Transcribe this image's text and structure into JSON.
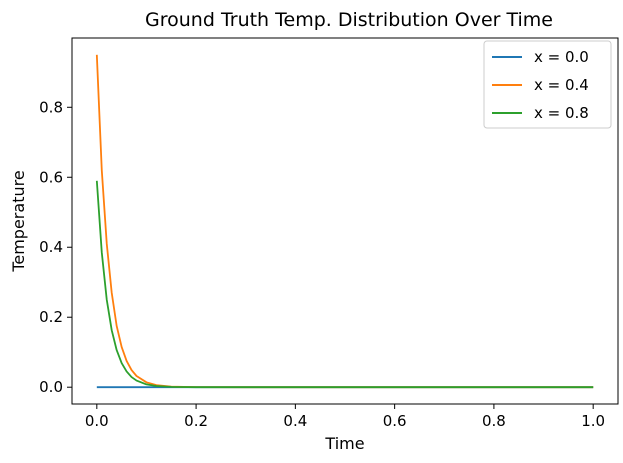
{
  "chart_data": {
    "type": "line",
    "title": "Ground Truth Temp. Distribution Over Time",
    "xlabel": "Time",
    "ylabel": "Temperature",
    "xlim": [
      -0.05,
      1.05
    ],
    "ylim": [
      -0.048,
      0.998
    ],
    "x_ticks": [
      0.0,
      0.2,
      0.4,
      0.6,
      0.8,
      1.0
    ],
    "y_ticks": [
      0.0,
      0.2,
      0.4,
      0.6,
      0.8
    ],
    "grid": false,
    "legend_position": "top-right",
    "x": [
      0.0,
      0.01,
      0.02,
      0.03,
      0.04,
      0.05,
      0.06,
      0.07,
      0.08,
      0.1,
      0.12,
      0.15,
      0.2,
      0.3,
      0.5,
      0.75,
      1.0
    ],
    "series": [
      {
        "name": "x = 0.0",
        "color": "#1f77b4",
        "values": [
          0.0,
          0.0,
          0.0,
          0.0,
          0.0,
          0.0,
          0.0,
          0.0,
          0.0,
          0.0,
          0.0,
          0.0,
          0.0,
          0.0,
          0.0,
          0.0,
          0.0
        ]
      },
      {
        "name": "x = 0.4",
        "color": "#ff7f0e",
        "values": [
          0.95,
          0.62,
          0.41,
          0.27,
          0.175,
          0.115,
          0.075,
          0.049,
          0.032,
          0.014,
          0.006,
          0.0017,
          0.0002,
          0.0,
          0.0,
          0.0,
          0.0
        ]
      },
      {
        "name": "x = 0.8",
        "color": "#2ca02c",
        "values": [
          0.59,
          0.385,
          0.25,
          0.163,
          0.106,
          0.069,
          0.045,
          0.029,
          0.019,
          0.008,
          0.0035,
          0.001,
          0.0001,
          0.0,
          0.0,
          0.0,
          0.0
        ]
      }
    ]
  }
}
